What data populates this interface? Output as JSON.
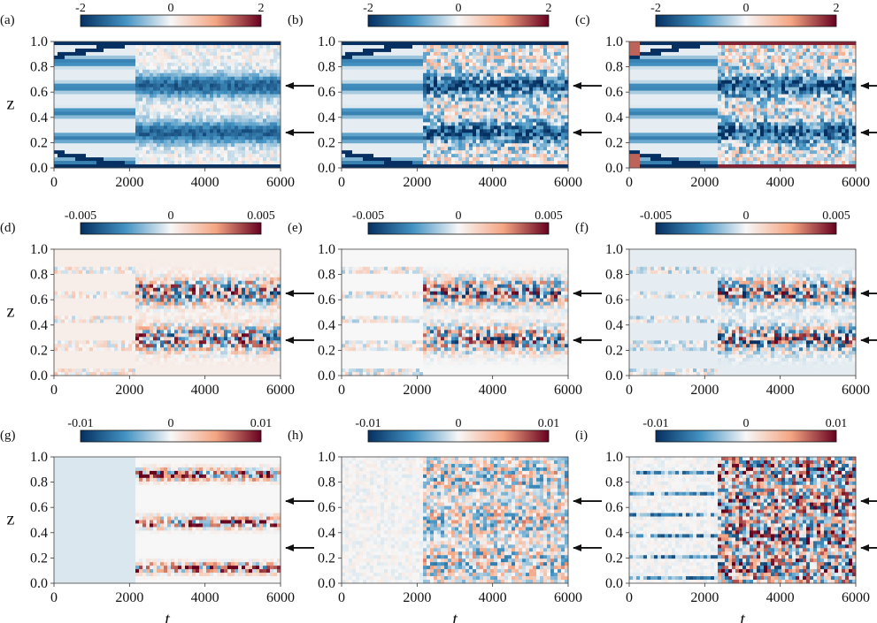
{
  "figure": {
    "colors": {
      "cmap_low": "#053061",
      "cmap_mid_low": "#4393c3",
      "cmap_mid": "#f7f7f7",
      "cmap_mid_high": "#f4a582",
      "cmap_high": "#67001f",
      "arrow": "#111111"
    },
    "y_axis_label": "z",
    "x_axis_label": "t",
    "arrow_z_levels": [
      0.65,
      0.28
    ]
  },
  "chart_data": [
    {
      "type": "heatmap",
      "panel": "(a)",
      "row": 0,
      "col": 0,
      "colorbar_ticks": [
        "-2",
        "0",
        "2"
      ],
      "clim": [
        -2,
        2
      ],
      "xlim": [
        0,
        6000
      ],
      "ylim": [
        0,
        1
      ],
      "x_ticks": [
        "0",
        "2000",
        "4000",
        "6000"
      ],
      "y_ticks": [
        "0.0",
        "0.2",
        "0.4",
        "0.6",
        "0.8",
        "1.0"
      ],
      "ylabel": "z",
      "xlabel": "",
      "arrow_z": [
        0.65,
        0.28
      ]
    },
    {
      "type": "heatmap",
      "panel": "(b)",
      "row": 0,
      "col": 1,
      "colorbar_ticks": [
        "-2",
        "0",
        "2"
      ],
      "clim": [
        -2,
        2
      ],
      "xlim": [
        0,
        6000
      ],
      "ylim": [
        0,
        1
      ],
      "x_ticks": [
        "0",
        "2000",
        "4000",
        "6000"
      ],
      "y_ticks": [
        "0.0",
        "0.2",
        "0.4",
        "0.6",
        "0.8",
        "1.0"
      ],
      "ylabel": "",
      "xlabel": "",
      "arrow_z": [
        0.65,
        0.28
      ]
    },
    {
      "type": "heatmap",
      "panel": "(c)",
      "row": 0,
      "col": 2,
      "colorbar_ticks": [
        "-2",
        "0",
        "2"
      ],
      "clim": [
        -2,
        2
      ],
      "xlim": [
        0,
        6000
      ],
      "ylim": [
        0,
        1
      ],
      "x_ticks": [
        "0",
        "2000",
        "4000",
        "6000"
      ],
      "y_ticks": [
        "0.0",
        "0.2",
        "0.4",
        "0.6",
        "0.8",
        "1.0"
      ],
      "ylabel": "",
      "xlabel": "",
      "arrow_z": [
        0.65,
        0.28
      ]
    },
    {
      "type": "heatmap",
      "panel": "(d)",
      "row": 1,
      "col": 0,
      "colorbar_ticks": [
        "-0.005",
        "0",
        "0.005"
      ],
      "clim": [
        -0.005,
        0.005
      ],
      "xlim": [
        0,
        6000
      ],
      "ylim": [
        0,
        1
      ],
      "x_ticks": [
        "0",
        "2000",
        "4000",
        "6000"
      ],
      "y_ticks": [
        "0.0",
        "0.2",
        "0.4",
        "0.6",
        "0.8",
        "1.0"
      ],
      "ylabel": "z",
      "xlabel": "",
      "arrow_z": [
        0.65,
        0.28
      ]
    },
    {
      "type": "heatmap",
      "panel": "(e)",
      "row": 1,
      "col": 1,
      "colorbar_ticks": [
        "-0.005",
        "0",
        "0.005"
      ],
      "clim": [
        -0.005,
        0.005
      ],
      "xlim": [
        0,
        6000
      ],
      "ylim": [
        0,
        1
      ],
      "x_ticks": [
        "0",
        "2000",
        "4000",
        "6000"
      ],
      "y_ticks": [
        "0.0",
        "0.2",
        "0.4",
        "0.6",
        "0.8",
        "1.0"
      ],
      "ylabel": "",
      "xlabel": "",
      "arrow_z": [
        0.65,
        0.28
      ]
    },
    {
      "type": "heatmap",
      "panel": "(f)",
      "row": 1,
      "col": 2,
      "colorbar_ticks": [
        "-0.005",
        "0",
        "0.005"
      ],
      "clim": [
        -0.005,
        0.005
      ],
      "xlim": [
        0,
        6000
      ],
      "ylim": [
        0,
        1
      ],
      "x_ticks": [
        "0",
        "2000",
        "4000",
        "6000"
      ],
      "y_ticks": [
        "0.0",
        "0.2",
        "0.4",
        "0.6",
        "0.8",
        "1.0"
      ],
      "ylabel": "",
      "xlabel": "",
      "arrow_z": [
        0.65,
        0.28
      ]
    },
    {
      "type": "heatmap",
      "panel": "(g)",
      "row": 2,
      "col": 0,
      "colorbar_ticks": [
        "-0.01",
        "0",
        "0.01"
      ],
      "clim": [
        -0.01,
        0.01
      ],
      "xlim": [
        0,
        6000
      ],
      "ylim": [
        0,
        1
      ],
      "x_ticks": [
        "0",
        "2000",
        "4000",
        "6000"
      ],
      "y_ticks": [
        "0.0",
        "0.2",
        "0.4",
        "0.6",
        "0.8",
        "1.0"
      ],
      "ylabel": "z",
      "xlabel": "t",
      "arrow_z": [
        0.65,
        0.28
      ]
    },
    {
      "type": "heatmap",
      "panel": "(h)",
      "row": 2,
      "col": 1,
      "colorbar_ticks": [
        "-0.01",
        "0",
        "0.01"
      ],
      "clim": [
        -0.01,
        0.01
      ],
      "xlim": [
        0,
        6000
      ],
      "ylim": [
        0,
        1
      ],
      "x_ticks": [
        "0",
        "2000",
        "4000",
        "6000"
      ],
      "y_ticks": [
        "0.0",
        "0.2",
        "0.4",
        "0.6",
        "0.8",
        "1.0"
      ],
      "ylabel": "",
      "xlabel": "t",
      "arrow_z": [
        0.65,
        0.28
      ]
    },
    {
      "type": "heatmap",
      "panel": "(i)",
      "row": 2,
      "col": 2,
      "colorbar_ticks": [
        "-0.01",
        "0",
        "0.01"
      ],
      "clim": [
        -0.01,
        0.01
      ],
      "xlim": [
        0,
        6000
      ],
      "ylim": [
        0,
        1
      ],
      "x_ticks": [
        "0",
        "2000",
        "4000",
        "6000"
      ],
      "y_ticks": [
        "0.0",
        "0.2",
        "0.4",
        "0.6",
        "0.8",
        "1.0"
      ],
      "ylabel": "",
      "xlabel": "t",
      "arrow_z": [
        0.65,
        0.28
      ]
    }
  ]
}
